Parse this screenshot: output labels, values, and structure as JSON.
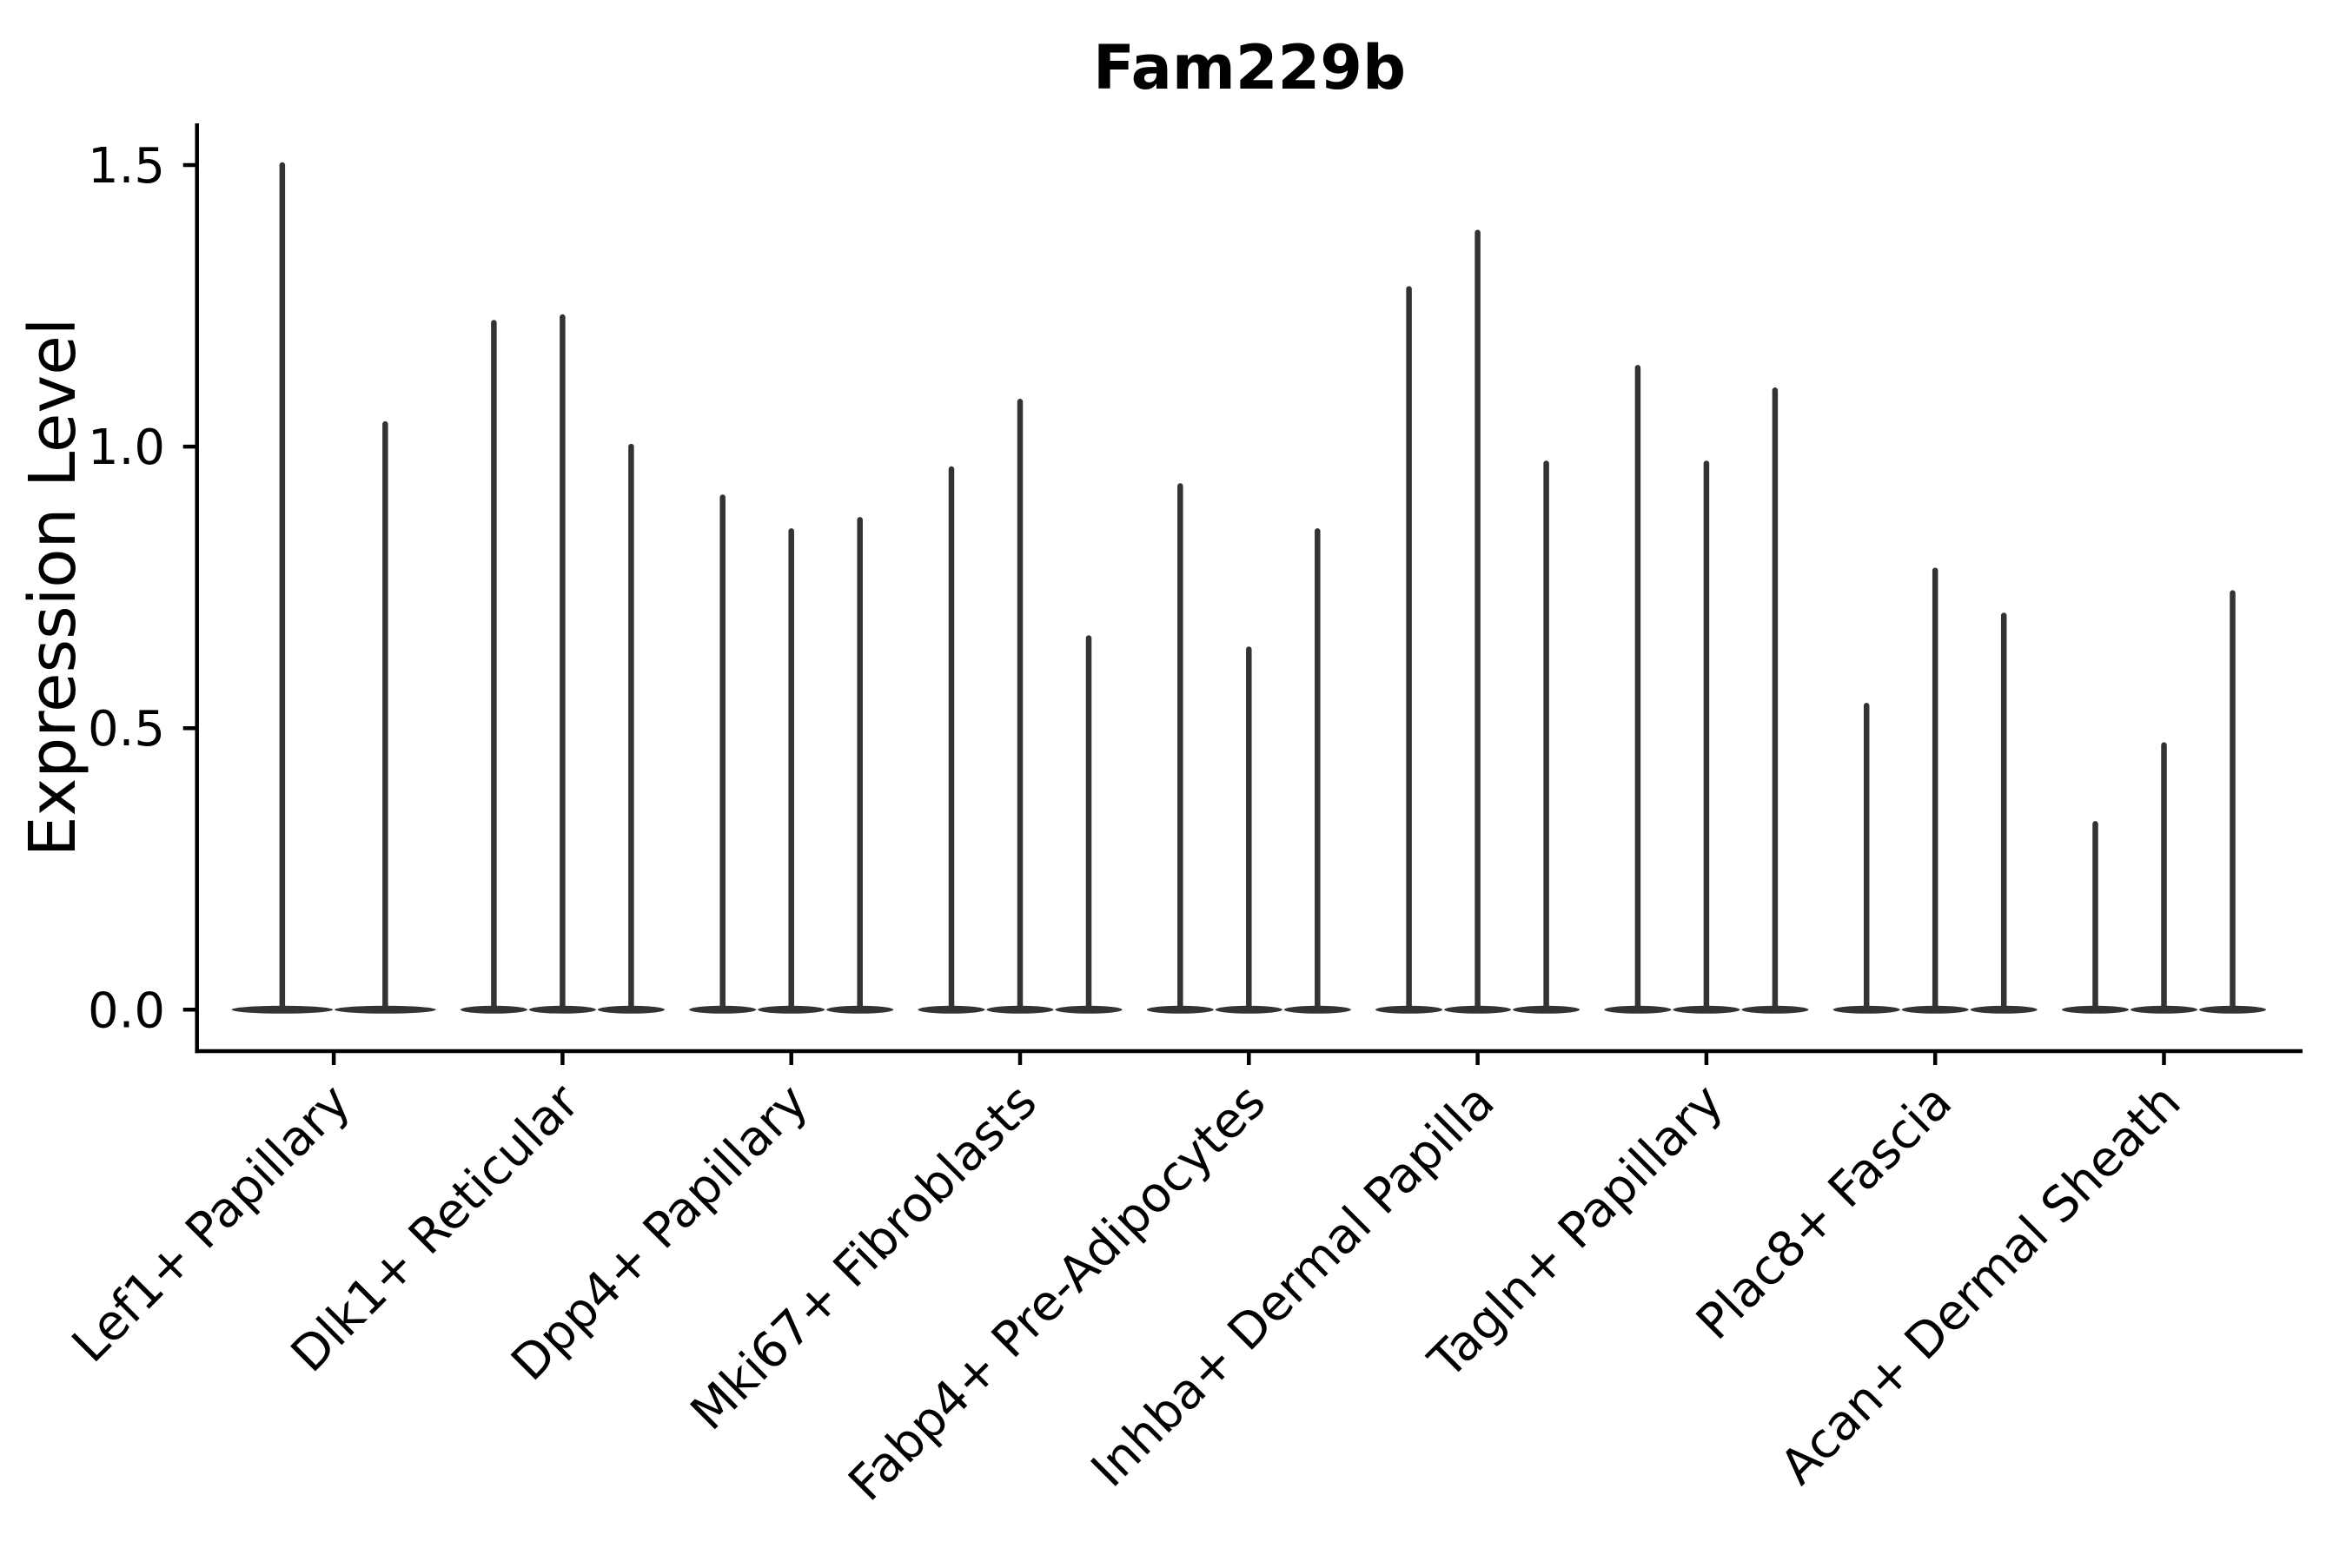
{
  "chart_data": {
    "type": "violin",
    "title": "Fam229b",
    "ylabel": "Expression Level",
    "xlabel": "",
    "ylim": [
      -0.074,
      1.574
    ],
    "grid": false,
    "legend": "none",
    "x_tick_rotation": 45,
    "yticks": [
      {
        "label": "0.0",
        "value": 0.0
      },
      {
        "label": "0.5",
        "value": 0.5
      },
      {
        "label": "1.0",
        "value": 1.0
      },
      {
        "label": "1.5",
        "value": 1.5
      }
    ],
    "categories": [
      "Lef1+ Papillary",
      "Dlk1+ Reticular",
      "Dpp4+ Papillary",
      "Mki67+ Fibroblasts",
      "Fabp4+ Pre-Adipocytes",
      "Inhba+ Dermal Papilla",
      "Tagln+ Papillary",
      "Plac8+ Fascia",
      "Acan+ Dermal Sheath"
    ],
    "groups": [
      {
        "category": "Lef1+ Papillary",
        "violin_maxima": [
          1.5,
          1.04
        ]
      },
      {
        "category": "Dlk1+ Reticular",
        "violin_maxima": [
          1.22,
          1.23,
          1.0
        ]
      },
      {
        "category": "Dpp4+ Papillary",
        "violin_maxima": [
          0.91,
          0.85,
          0.87
        ]
      },
      {
        "category": "Mki67+ Fibroblasts",
        "violin_maxima": [
          0.96,
          1.08,
          0.66
        ]
      },
      {
        "category": "Fabp4+ Pre-Adipocytes",
        "violin_maxima": [
          0.93,
          0.64,
          0.85
        ]
      },
      {
        "category": "Inhba+ Dermal Papilla",
        "violin_maxima": [
          1.28,
          1.38,
          0.97
        ]
      },
      {
        "category": "Tagln+ Papillary",
        "violin_maxima": [
          1.14,
          0.97,
          1.1
        ]
      },
      {
        "category": "Plac8+ Fascia",
        "violin_maxima": [
          0.54,
          0.78,
          0.7
        ]
      },
      {
        "category": "Acan+ Dermal Sheath",
        "violin_maxima": [
          0.33,
          0.47,
          0.74
        ]
      }
    ],
    "violin_description": "All violins rise from an expression level of 0; the density mass sits at 0 (flat lens at baseline) with a thin spike up to each violin maximum.",
    "colors": {
      "violin": "#333333",
      "axis": "#000000",
      "text": "#000000",
      "background": "#ffffff"
    }
  }
}
